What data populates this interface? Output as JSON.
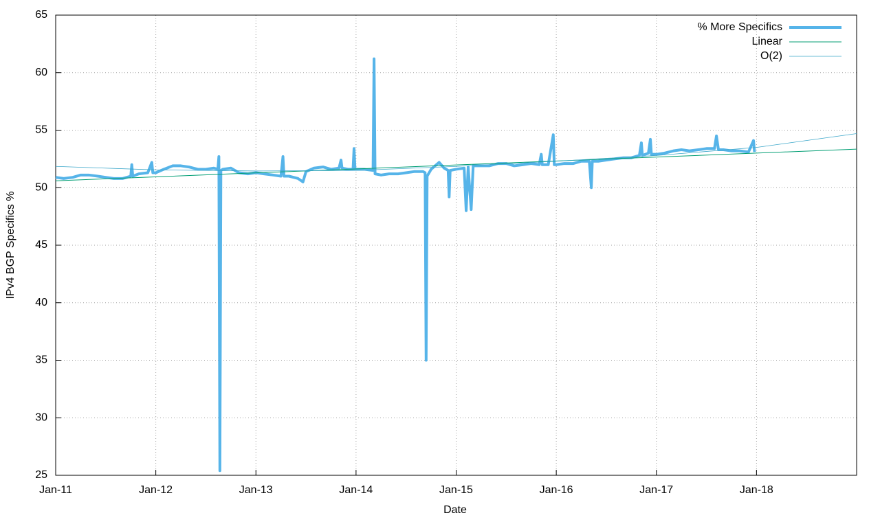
{
  "chart_data": {
    "type": "line",
    "xlabel": "Date",
    "ylabel": "IPv4 BGP Specifics %",
    "xlim": [
      2011,
      2019
    ],
    "xticks": [
      {
        "value": 2011,
        "label": "Jan-11"
      },
      {
        "value": 2012,
        "label": "Jan-12"
      },
      {
        "value": 2013,
        "label": "Jan-13"
      },
      {
        "value": 2014,
        "label": "Jan-14"
      },
      {
        "value": 2015,
        "label": "Jan-15"
      },
      {
        "value": 2016,
        "label": "Jan-16"
      },
      {
        "value": 2017,
        "label": "Jan-17"
      },
      {
        "value": 2018,
        "label": "Jan-18"
      }
    ],
    "ylim": [
      25,
      65
    ],
    "yticks": [
      25,
      30,
      35,
      40,
      45,
      50,
      55,
      60,
      65
    ],
    "grid": true,
    "legend": "top-right",
    "series": [
      {
        "name": "% More Specifics",
        "color": "#56b4e9",
        "line_width": 4,
        "x": [
          2011.0,
          2011.08,
          2011.17,
          2011.25,
          2011.33,
          2011.42,
          2011.5,
          2011.58,
          2011.67,
          2011.75,
          2011.76,
          2011.77,
          2011.83,
          2011.92,
          2011.96,
          2011.97,
          2012.0,
          2012.08,
          2012.17,
          2012.25,
          2012.33,
          2012.42,
          2012.5,
          2012.58,
          2012.62,
          2012.63,
          2012.64,
          2012.65,
          2012.67,
          2012.75,
          2012.83,
          2012.92,
          2013.0,
          2013.08,
          2013.17,
          2013.25,
          2013.27,
          2013.28,
          2013.33,
          2013.42,
          2013.47,
          2013.5,
          2013.58,
          2013.67,
          2013.75,
          2013.83,
          2013.85,
          2013.86,
          2013.92,
          2013.97,
          2013.98,
          2013.99,
          2014.08,
          2014.17,
          2014.18,
          2014.19,
          2014.25,
          2014.33,
          2014.42,
          2014.5,
          2014.58,
          2014.67,
          2014.69,
          2014.7,
          2014.71,
          2014.75,
          2014.83,
          2014.88,
          2014.92,
          2014.93,
          2014.94,
          2015.0,
          2015.08,
          2015.1,
          2015.12,
          2015.15,
          2015.17,
          2015.25,
          2015.33,
          2015.42,
          2015.5,
          2015.58,
          2015.67,
          2015.75,
          2015.83,
          2015.85,
          2015.86,
          2015.92,
          2015.97,
          2015.98,
          2016.0,
          2016.08,
          2016.17,
          2016.25,
          2016.33,
          2016.35,
          2016.36,
          2016.42,
          2016.5,
          2016.58,
          2016.67,
          2016.75,
          2016.83,
          2016.85,
          2016.86,
          2016.92,
          2016.94,
          2016.95,
          2017.0,
          2017.08,
          2017.17,
          2017.25,
          2017.33,
          2017.42,
          2017.5,
          2017.58,
          2017.6,
          2017.62,
          2017.67,
          2017.75,
          2017.83,
          2017.92,
          2017.97,
          2017.98
        ],
        "values": [
          50.9,
          50.8,
          50.9,
          51.1,
          51.1,
          51.0,
          50.9,
          50.8,
          50.8,
          51.0,
          52.0,
          51.0,
          51.2,
          51.3,
          52.2,
          51.3,
          51.3,
          51.6,
          51.9,
          51.9,
          51.8,
          51.6,
          51.6,
          51.7,
          51.6,
          52.7,
          25.4,
          51.5,
          51.6,
          51.7,
          51.3,
          51.2,
          51.3,
          51.2,
          51.1,
          51.0,
          52.7,
          51.0,
          51.0,
          50.8,
          50.5,
          51.4,
          51.7,
          51.8,
          51.6,
          51.7,
          52.4,
          51.7,
          51.6,
          51.6,
          53.4,
          51.6,
          51.6,
          51.5,
          61.2,
          51.2,
          51.1,
          51.2,
          51.2,
          51.3,
          51.4,
          51.4,
          51.3,
          35.0,
          51.0,
          51.6,
          52.2,
          51.7,
          51.5,
          49.2,
          51.5,
          51.6,
          51.7,
          48.0,
          51.8,
          48.1,
          51.9,
          51.9,
          51.9,
          52.1,
          52.1,
          51.9,
          52.0,
          52.1,
          52.0,
          52.9,
          52.0,
          52.0,
          54.6,
          52.0,
          52.0,
          52.1,
          52.1,
          52.3,
          52.3,
          50.0,
          52.3,
          52.3,
          52.4,
          52.5,
          52.6,
          52.6,
          52.8,
          53.9,
          52.8,
          53.0,
          54.2,
          52.9,
          52.9,
          53.0,
          53.2,
          53.3,
          53.2,
          53.3,
          53.4,
          53.4,
          54.5,
          53.3,
          53.3,
          53.2,
          53.2,
          53.1,
          54.1,
          53.1
        ]
      },
      {
        "name": "Linear",
        "color": "#009e73",
        "line_width": 1,
        "x": [
          2011,
          2019
        ],
        "values": [
          50.6,
          53.35
        ]
      },
      {
        "name": "O(2)",
        "color": "#3aa6c9",
        "line_width": 0.8,
        "x": [
          2011,
          2012,
          2013,
          2014,
          2015,
          2016,
          2017,
          2018,
          2019
        ],
        "values": [
          51.85,
          51.55,
          51.45,
          51.5,
          51.85,
          52.3,
          52.8,
          53.5,
          54.7
        ]
      }
    ]
  }
}
